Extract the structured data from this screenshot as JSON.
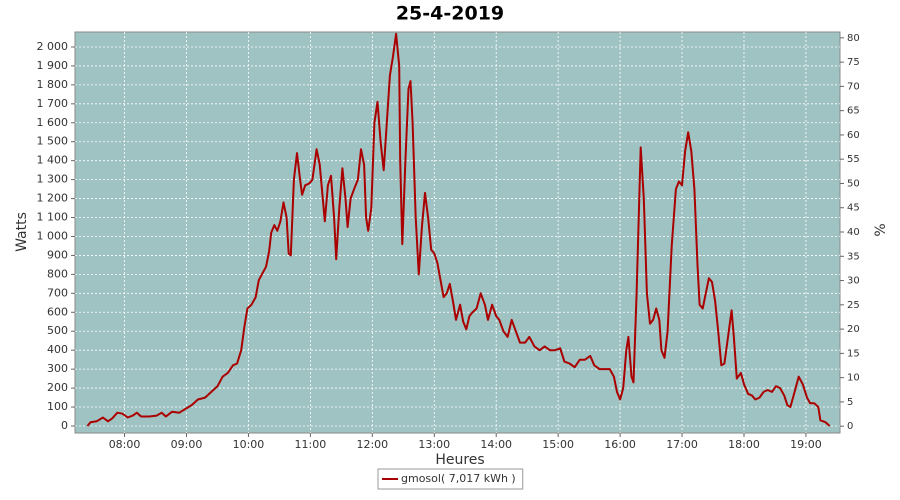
{
  "chart_data": {
    "type": "line",
    "title": "25-4-2019",
    "x_label": "Heures",
    "y_label": "Watts",
    "y2_label": "%",
    "xlim": [
      "07:12",
      "19:33"
    ],
    "xticks": [
      "08:00",
      "09:00",
      "10:00",
      "11:00",
      "12:00",
      "13:00",
      "14:00",
      "15:00",
      "16:00",
      "17:00",
      "18:00",
      "19:00"
    ],
    "ylim": [
      -37,
      2079
    ],
    "yticks": [
      0,
      100,
      200,
      300,
      400,
      500,
      600,
      700,
      800,
      900,
      {
        "value": 1000,
        "label": "1 000"
      },
      {
        "value": 1100,
        "label": "1 100"
      },
      {
        "value": 1200,
        "label": "1 200"
      },
      {
        "value": 1300,
        "label": "1 300"
      },
      {
        "value": 1400,
        "label": "1 400"
      },
      {
        "value": 1500,
        "label": "1 500"
      },
      {
        "value": 1600,
        "label": "1 600"
      },
      {
        "value": 1700,
        "label": "1 700"
      },
      {
        "value": 1800,
        "label": "1 800"
      },
      {
        "value": 1900,
        "label": "1 900"
      },
      {
        "value": 2000,
        "label": "2 000"
      }
    ],
    "y2lim": [
      -1.4,
      81.2
    ],
    "y2ticks": [
      0,
      5,
      10,
      15,
      20,
      25,
      30,
      35,
      40,
      45,
      50,
      55,
      60,
      65,
      70,
      75,
      80
    ],
    "grid": true,
    "background": "#9fc3c3",
    "legend": "bottom",
    "x": [
      "07:24",
      "07:27",
      "07:33",
      "07:39",
      "07:44",
      "07:48",
      "07:53",
      "07:58",
      "08:03",
      "08:08",
      "08:12",
      "08:16",
      "08:24",
      "08:31",
      "08:36",
      "08:40",
      "08:46",
      "08:53",
      "08:59",
      "09:05",
      "09:11",
      "09:18",
      "09:24",
      "09:30",
      "09:35",
      "09:40",
      "09:45",
      "09:49",
      "09:53",
      "09:56",
      "09:59",
      "10:03",
      "10:07",
      "10:10",
      "10:14",
      "10:17",
      "10:20",
      "10:22",
      "10:25",
      "10:28",
      "10:31",
      "10:34",
      "10:37",
      "10:39",
      "10:41",
      "10:44",
      "10:47",
      "10:50",
      "10:52",
      "10:55",
      "10:59",
      "11:02",
      "11:06",
      "11:09",
      "11:12",
      "11:14",
      "11:17",
      "11:20",
      "11:23",
      "11:25",
      "11:28",
      "11:31",
      "11:34",
      "11:36",
      "11:39",
      "11:43",
      "11:46",
      "11:49",
      "11:52",
      "11:54",
      "11:56",
      "11:59",
      "12:02",
      "12:05",
      "12:08",
      "12:11",
      "12:14",
      "12:17",
      "12:20",
      "12:23",
      "12:26",
      "12:27",
      "12:29",
      "12:32",
      "12:35",
      "12:37",
      "12:39",
      "12:42",
      "12:45",
      "12:48",
      "12:51",
      "12:54",
      "12:57",
      "13:00",
      "13:03",
      "13:06",
      "13:09",
      "13:12",
      "13:15",
      "13:18",
      "13:21",
      "13:25",
      "13:28",
      "13:31",
      "13:34",
      "13:37",
      "13:41",
      "13:45",
      "13:49",
      "13:52",
      "13:56",
      "14:00",
      "14:03",
      "14:07",
      "14:11",
      "14:15",
      "14:19",
      "14:23",
      "14:28",
      "14:32",
      "14:37",
      "14:42",
      "14:47",
      "14:52",
      "14:57",
      "15:02",
      "15:06",
      "15:11",
      "15:16",
      "15:21",
      "15:26",
      "15:31",
      "15:35",
      "15:40",
      "15:45",
      "15:50",
      "15:54",
      "15:57",
      "16:00",
      "16:03",
      "16:06",
      "16:08",
      "16:11",
      "16:13",
      "16:16",
      "16:20",
      "16:23",
      "16:26",
      "16:29",
      "16:32",
      "16:35",
      "16:38",
      "16:40",
      "16:43",
      "16:46",
      "16:50",
      "16:54",
      "16:57",
      "17:00",
      "17:03",
      "17:06",
      "17:09",
      "17:12",
      "17:15",
      "17:17",
      "17:20",
      "17:23",
      "17:26",
      "17:29",
      "17:32",
      "17:35",
      "17:38",
      "17:41",
      "17:44",
      "17:48",
      "17:50",
      "17:53",
      "17:57",
      "18:00",
      "18:04",
      "18:08",
      "18:11",
      "18:15",
      "18:19",
      "18:23",
      "18:27",
      "18:31",
      "18:35",
      "18:39",
      "18:42",
      "18:45",
      "18:49",
      "18:53",
      "18:57",
      "19:01",
      "19:04",
      "19:08",
      "19:12",
      "19:14",
      "19:19",
      "19:23"
    ],
    "series": [
      {
        "name": "gmosol( 7,017 kWh )",
        "color": "#aa0000",
        "values": [
          0,
          20,
          25,
          45,
          25,
          40,
          70,
          65,
          45,
          55,
          70,
          50,
          50,
          55,
          70,
          50,
          75,
          70,
          90,
          110,
          140,
          150,
          180,
          210,
          260,
          280,
          320,
          330,
          400,
          520,
          620,
          640,
          680,
          770,
          810,
          840,
          920,
          1020,
          1060,
          1030,
          1080,
          1180,
          1100,
          910,
          900,
          1300,
          1440,
          1300,
          1220,
          1270,
          1280,
          1300,
          1460,
          1380,
          1200,
          1080,
          1270,
          1320,
          1100,
          880,
          1150,
          1360,
          1200,
          1050,
          1200,
          1260,
          1300,
          1460,
          1380,
          1100,
          1030,
          1150,
          1600,
          1710,
          1500,
          1350,
          1600,
          1850,
          1950,
          2070,
          1900,
          1400,
          960,
          1400,
          1780,
          1820,
          1600,
          1100,
          800,
          1050,
          1230,
          1100,
          930,
          910,
          860,
          770,
          680,
          700,
          750,
          660,
          560,
          640,
          550,
          510,
          580,
          600,
          620,
          700,
          640,
          560,
          640,
          580,
          560,
          500,
          470,
          560,
          500,
          440,
          440,
          470,
          420,
          400,
          420,
          400,
          400,
          410,
          340,
          330,
          310,
          350,
          350,
          370,
          320,
          300,
          300,
          300,
          260,
          180,
          140,
          200,
          400,
          470,
          260,
          230,
          700,
          1470,
          1200,
          700,
          540,
          560,
          620,
          560,
          400,
          360,
          500,
          950,
          1250,
          1290,
          1270,
          1450,
          1550,
          1450,
          1250,
          850,
          640,
          620,
          700,
          780,
          760,
          660,
          500,
          320,
          330,
          450,
          610,
          480,
          250,
          280,
          220,
          170,
          160,
          140,
          150,
          180,
          190,
          180,
          210,
          200,
          160,
          110,
          100,
          180,
          260,
          220,
          150,
          120,
          120,
          100,
          30,
          20,
          0
        ]
      }
    ]
  }
}
